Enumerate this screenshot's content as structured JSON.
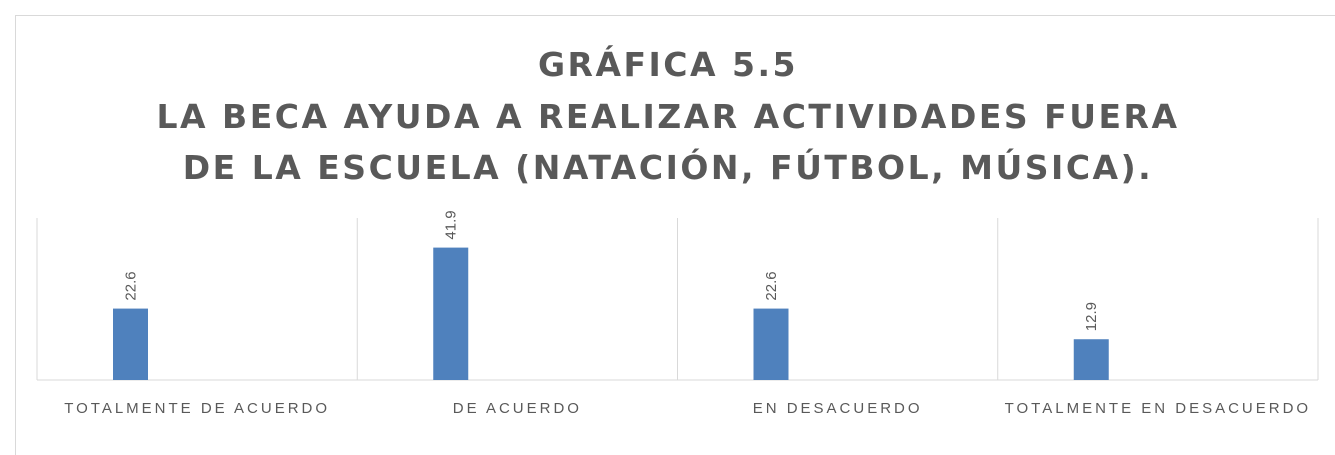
{
  "chart_data": {
    "type": "bar",
    "title": [
      "GRÁFICA 5.5",
      "LA BECA AYUDA A REALIZAR ACTIVIDADES FUERA",
      "DE LA ESCUELA (NATACIÓN, FÚTBOL, MÚSICA)."
    ],
    "categories": [
      "TOTALMENTE DE ACUERDO",
      "DE ACUERDO",
      "EN DESACUERDO",
      "TOTALMENTE EN DESACUERDO"
    ],
    "values": [
      22.6,
      41.9,
      22.6,
      12.9
    ],
    "color": "#4f81bd",
    "ylim": [
      0,
      50
    ]
  }
}
